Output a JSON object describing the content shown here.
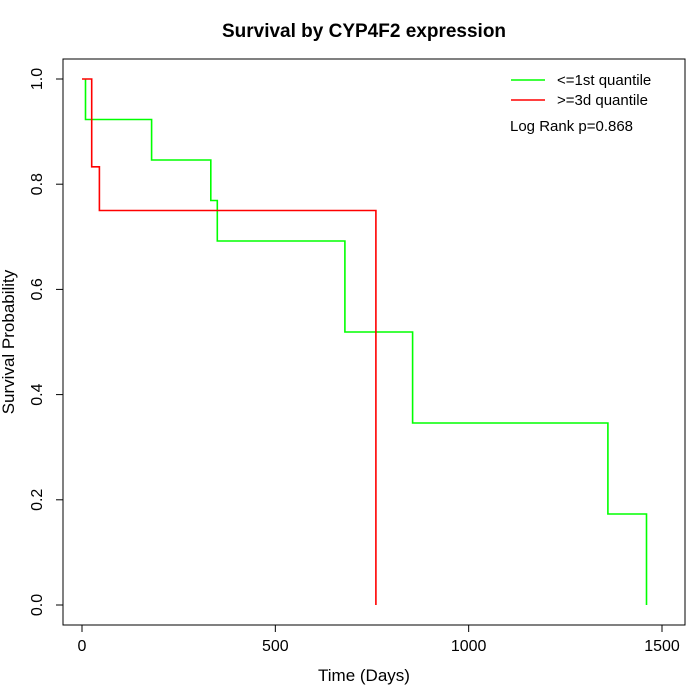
{
  "chart_data": {
    "type": "line",
    "step": true,
    "title": "Survival by CYP4F2 expression",
    "xlabel": "Time (Days)",
    "ylabel": "Survival Probability",
    "xlim": [
      0,
      1500
    ],
    "ylim": [
      0,
      1
    ],
    "xticks": [
      0,
      500,
      1000,
      1500
    ],
    "yticks": [
      0.0,
      0.2,
      0.4,
      0.6,
      0.8,
      1.0
    ],
    "xtick_labels": [
      "0",
      "500",
      "1000",
      "1500"
    ],
    "ytick_labels": [
      "0.0",
      "0.2",
      "0.4",
      "0.6",
      "0.8",
      "1.0"
    ],
    "legend_position": "top-right",
    "annotation": "Log Rank p=0.868",
    "series": [
      {
        "name": "<=1st quantile",
        "color": "#00ff00",
        "x": [
          9,
          9,
          180,
          180,
          333,
          333,
          350,
          350,
          680,
          680,
          855,
          855,
          1360,
          1360,
          1460,
          1460
        ],
        "y": [
          1.0,
          0.923,
          0.923,
          0.846,
          0.846,
          0.769,
          0.769,
          0.692,
          0.692,
          0.519,
          0.519,
          0.346,
          0.346,
          0.173,
          0.173,
          0.0
        ]
      },
      {
        "name": ">=3d quantile",
        "color": "#ff0000",
        "x": [
          0,
          25,
          25,
          45,
          45,
          760,
          760
        ],
        "y": [
          1.0,
          1.0,
          0.833,
          0.833,
          0.75,
          0.75,
          0.0
        ]
      }
    ]
  }
}
